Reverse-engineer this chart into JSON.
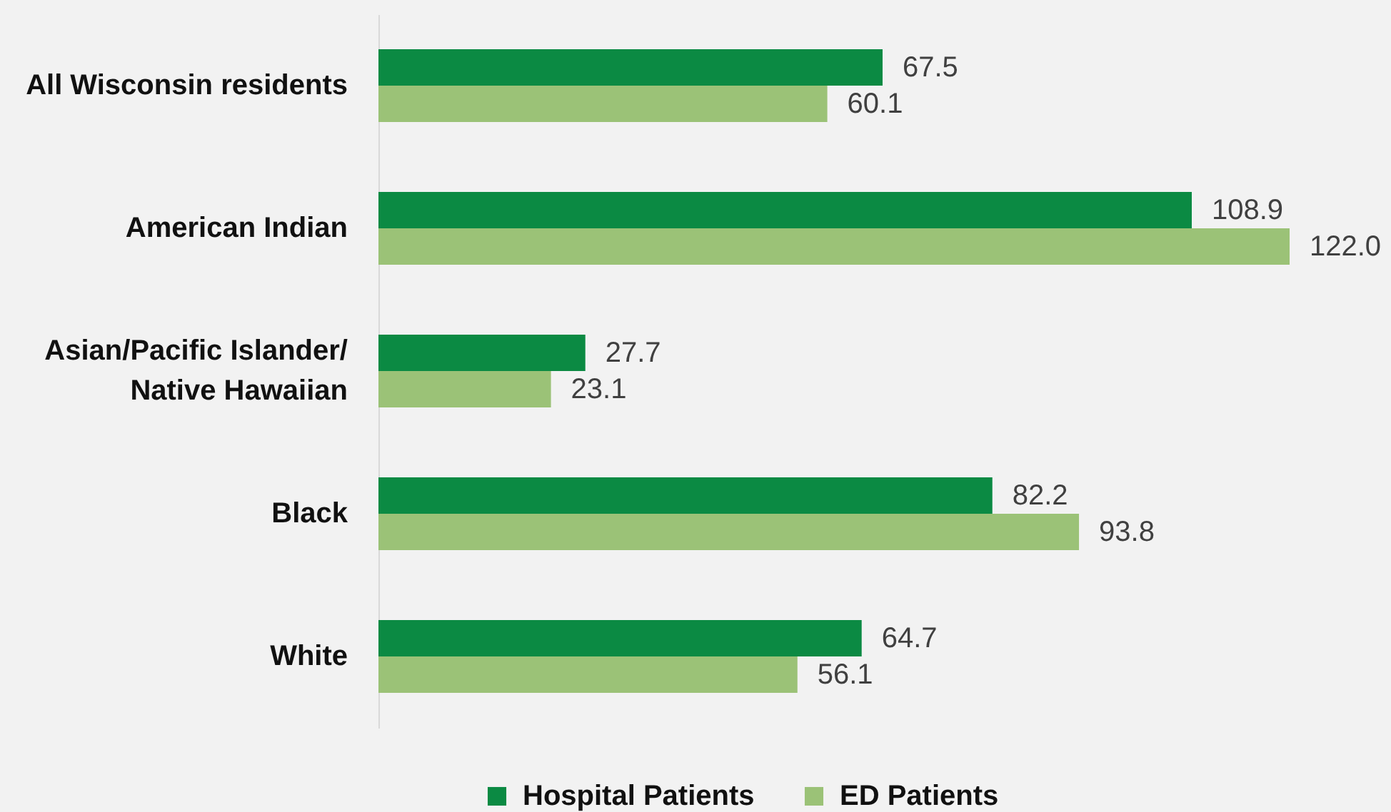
{
  "chart_data": {
    "type": "bar",
    "orientation": "horizontal",
    "categories": [
      "All Wisconsin residents",
      "American Indian",
      "Asian/Pacific Islander/ Native Hawaiian",
      "Black",
      "White"
    ],
    "series": [
      {
        "name": "Hospital Patients",
        "color": "#0b8a43",
        "values": [
          67.5,
          108.9,
          27.7,
          82.2,
          64.7
        ],
        "value_labels": [
          "67.5",
          "108.9",
          "27.7",
          "82.2",
          "64.7"
        ]
      },
      {
        "name": "ED Patients",
        "color": "#9bc277",
        "values": [
          60.1,
          122.0,
          23.1,
          93.8,
          56.1
        ],
        "value_labels": [
          "60.1",
          "122.0",
          "23.1",
          "93.8",
          "56.1"
        ]
      }
    ],
    "legend": "bottom",
    "tick_labels": "y"
  }
}
